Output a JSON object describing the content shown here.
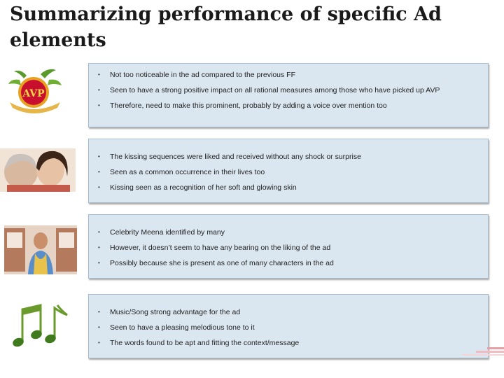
{
  "title": "Summarizing performance of specific Ad elements",
  "sections": [
    {
      "image": "avp-logo-icon",
      "bullets": [
        "Not too noticeable in the ad compared to the previous FF",
        "Seen to have a strong positive impact on all rational measures among those who have picked up AVP",
        "Therefore, need to make this prominent, probably by adding a voice over mention too"
      ]
    },
    {
      "image": "kissing-women-photo",
      "bullets": [
        "The kissing sequences were liked and received without any shock or surprise",
        "Seen as a common occurrence in their lives too",
        "Kissing seen as a recognition of her soft and glowing skin"
      ]
    },
    {
      "image": "celebrity-meena-photo",
      "bullets": [
        "Celebrity Meena identified by many",
        "However, it doesn’t seem to have any bearing on the liking of the ad",
        "Possibly because she is present as one of many characters in the ad"
      ]
    },
    {
      "image": "music-notes-icon",
      "bullets": [
        "Music/Song strong advantage for the ad",
        "Seen to have a pleasing melodious tone to it",
        "The words found to be apt and fitting the context/message"
      ]
    }
  ],
  "logo_text": "AVP",
  "bullet_glyph": "•",
  "colors": {
    "panel_bg": "#dbe7f0",
    "panel_border": "#a9bccb",
    "accent_red": "#c8102e"
  }
}
